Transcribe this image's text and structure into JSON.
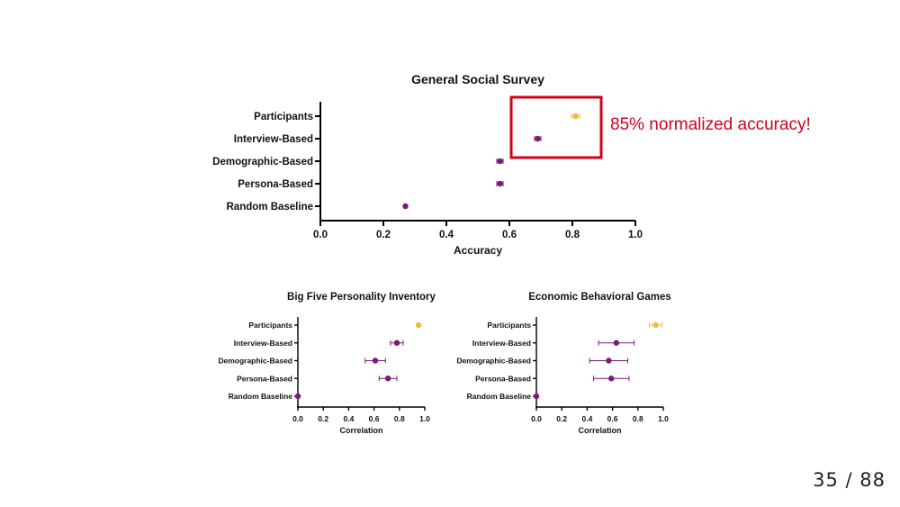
{
  "slide": {
    "callout": "85% normalized accuracy!",
    "page_current": "35",
    "page_separator": "/",
    "page_total": "88"
  },
  "colors": {
    "participants": "#f5b942",
    "agent": "#7b1a7b",
    "highlight": "#d0021b",
    "axis": "#000000"
  },
  "chart_data": [
    {
      "type": "scatter",
      "title": "General Social Survey",
      "xlabel": "Accuracy",
      "xlim": [
        0,
        1.0
      ],
      "xticks": [
        0.0,
        0.2,
        0.4,
        0.6,
        0.8,
        1.0
      ],
      "xtick_labels": [
        "0.0",
        "0.2",
        "0.4",
        "0.6",
        "0.8",
        "1.0"
      ],
      "categories": [
        "Participants",
        "Interview-Based",
        "Demographic-Based",
        "Persona-Based",
        "Random Baseline"
      ],
      "values": [
        0.81,
        0.69,
        0.57,
        0.57,
        0.27
      ],
      "errors": [
        0.013,
        0.01,
        0.01,
        0.01,
        0.0
      ],
      "highlighted_categories": [
        "Participants",
        "Interview-Based"
      ]
    },
    {
      "type": "scatter",
      "title": "Big Five Personality Inventory",
      "xlabel": "Correlation",
      "xlim": [
        0,
        1.0
      ],
      "xticks": [
        0.0,
        0.2,
        0.4,
        0.6,
        0.8,
        1.0
      ],
      "xtick_labels": [
        "0.0",
        "0.2",
        "0.4",
        "0.6",
        "0.8",
        "1.0"
      ],
      "categories": [
        "Participants",
        "Interview-Based",
        "Demographic-Based",
        "Persona-Based",
        "Random Baseline"
      ],
      "values": [
        0.95,
        0.78,
        0.61,
        0.71,
        0.0
      ],
      "errors": [
        0.0,
        0.05,
        0.08,
        0.07,
        0.0
      ]
    },
    {
      "type": "scatter",
      "title": "Economic Behavioral Games",
      "xlabel": "Correlation",
      "xlim": [
        0,
        1.0
      ],
      "xticks": [
        0.0,
        0.2,
        0.4,
        0.6,
        0.8,
        1.0
      ],
      "xtick_labels": [
        "0.0",
        "0.2",
        "0.4",
        "0.6",
        "0.8",
        "1.0"
      ],
      "categories": [
        "Participants",
        "Interview-Based",
        "Demographic-Based",
        "Persona-Based",
        "Random Baseline"
      ],
      "values": [
        0.94,
        0.63,
        0.57,
        0.59,
        0.0
      ],
      "errors": [
        0.05,
        0.14,
        0.15,
        0.14,
        0.0
      ]
    }
  ]
}
